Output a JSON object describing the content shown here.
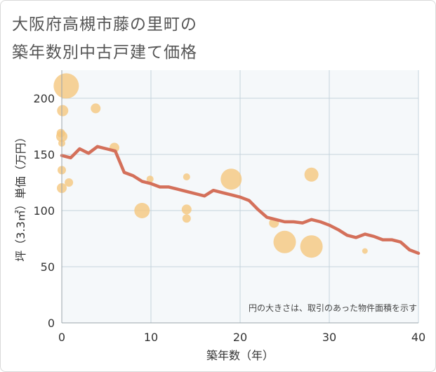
{
  "header": {
    "title_line1": "大阪府高槻市藤の里町の",
    "title_line2": "築年数別中古戸建て価格"
  },
  "colors": {
    "line": "#d4705a",
    "bubble": "#f5c77e",
    "grid": "#c5d3dc",
    "plot_bg": "#f5f8fa"
  },
  "chart_data": {
    "type": "scatter",
    "title": "大阪府高槻市藤の里町の築年数別中古戸建て価格",
    "xlabel": "築年数（年）",
    "ylabel": "坪（3.3㎡）単価（万円）",
    "xlim": [
      0,
      40
    ],
    "ylim": [
      0,
      225
    ],
    "x_ticks": [
      "0",
      "10",
      "20",
      "30",
      "40"
    ],
    "y_ticks": [
      "0",
      "50",
      "100",
      "150",
      "200"
    ],
    "grid": true,
    "note": "円の大きさは、取引のあった物件面積を示す",
    "series": [
      {
        "type": "line",
        "points": [
          [
            0,
            149
          ],
          [
            1,
            147
          ],
          [
            2,
            155
          ],
          [
            3,
            151
          ],
          [
            4,
            157
          ],
          [
            5,
            155
          ],
          [
            6,
            153
          ],
          [
            7,
            134
          ],
          [
            8,
            131
          ],
          [
            9,
            126
          ],
          [
            10,
            124
          ],
          [
            11,
            121
          ],
          [
            12,
            121
          ],
          [
            13,
            119
          ],
          [
            14,
            117
          ],
          [
            15,
            115
          ],
          [
            16,
            113
          ],
          [
            17,
            118
          ],
          [
            18,
            116
          ],
          [
            19,
            114
          ],
          [
            20,
            112
          ],
          [
            21,
            109
          ],
          [
            22,
            101
          ],
          [
            23,
            94
          ],
          [
            24,
            92
          ],
          [
            25,
            90
          ],
          [
            26,
            90
          ],
          [
            27,
            89
          ],
          [
            28,
            92
          ],
          [
            29,
            90
          ],
          [
            30,
            87
          ],
          [
            31,
            83
          ],
          [
            32,
            78
          ],
          [
            33,
            76
          ],
          [
            34,
            79
          ],
          [
            35,
            77
          ],
          [
            36,
            74
          ],
          [
            37,
            74
          ],
          [
            38,
            72
          ],
          [
            39,
            65
          ],
          [
            40,
            62
          ]
        ]
      },
      {
        "type": "bubble",
        "points": [
          {
            "x": 0.5,
            "y": 211,
            "s": 36
          },
          {
            "x": 0.1,
            "y": 189,
            "s": 16
          },
          {
            "x": -0.1,
            "y": 169,
            "s": 12
          },
          {
            "x": 0,
            "y": 166,
            "s": 16
          },
          {
            "x": 0,
            "y": 160,
            "s": 10
          },
          {
            "x": 0,
            "y": 136,
            "s": 12
          },
          {
            "x": 0,
            "y": 120,
            "s": 14
          },
          {
            "x": 0.8,
            "y": 125,
            "s": 12
          },
          {
            "x": 3.8,
            "y": 191,
            "s": 14
          },
          {
            "x": 5.9,
            "y": 156,
            "s": 14
          },
          {
            "x": 9,
            "y": 100,
            "s": 22
          },
          {
            "x": 9.9,
            "y": 128,
            "s": 10
          },
          {
            "x": 14,
            "y": 130,
            "s": 10
          },
          {
            "x": 14,
            "y": 101,
            "s": 14
          },
          {
            "x": 14,
            "y": 93,
            "s": 12
          },
          {
            "x": 19,
            "y": 128,
            "s": 30
          },
          {
            "x": 23.8,
            "y": 89,
            "s": 14
          },
          {
            "x": 25,
            "y": 72,
            "s": 32
          },
          {
            "x": 28,
            "y": 132,
            "s": 20
          },
          {
            "x": 28,
            "y": 68,
            "s": 32
          },
          {
            "x": 34,
            "y": 64,
            "s": 8
          }
        ]
      }
    ]
  }
}
